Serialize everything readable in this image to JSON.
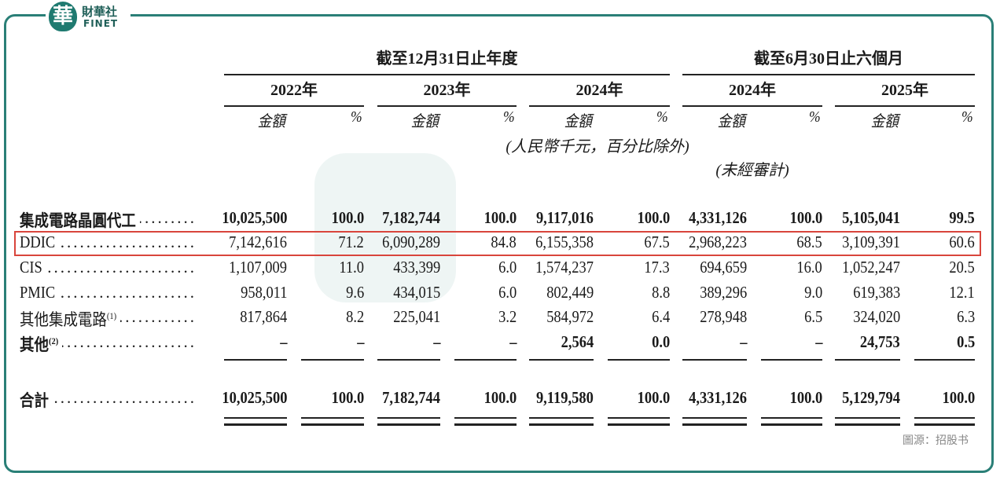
{
  "logo": {
    "mark": "華",
    "name": "財華社",
    "sub": "FINET"
  },
  "table": {
    "groups": [
      "截至12月31日止年度",
      "截至6月30日止六個月"
    ],
    "years": [
      "2022年",
      "2023年",
      "2024年",
      "2024年",
      "2025年"
    ],
    "subheaders": [
      "金額",
      "%"
    ],
    "unit_note": "(人民幣千元，百分比除外)",
    "audit_note": "(未經審計)",
    "rows": [
      {
        "label": "集成電路晶圓代工",
        "cells": [
          "10,025,500",
          "100.0",
          "7,182,744",
          "100.0",
          "9,117,016",
          "100.0",
          "4,331,126",
          "100.0",
          "5,105,041",
          "99.5"
        ]
      },
      {
        "label": "DDIC",
        "cells": [
          "7,142,616",
          "71.2",
          "6,090,289",
          "84.8",
          "6,155,358",
          "67.5",
          "2,968,223",
          "68.5",
          "3,109,391",
          "60.6"
        ]
      },
      {
        "label": "CIS",
        "cells": [
          "1,107,009",
          "11.0",
          "433,399",
          "6.0",
          "1,574,237",
          "17.3",
          "694,659",
          "16.0",
          "1,052,247",
          "20.5"
        ]
      },
      {
        "label": "PMIC",
        "cells": [
          "958,011",
          "9.6",
          "434,015",
          "6.0",
          "802,449",
          "8.8",
          "389,296",
          "9.0",
          "619,383",
          "12.1"
        ]
      },
      {
        "label": "其他集成電路",
        "note": "(1)",
        "cells": [
          "817,864",
          "8.2",
          "225,041",
          "3.2",
          "584,972",
          "6.4",
          "278,948",
          "6.5",
          "324,020",
          "6.3"
        ]
      },
      {
        "label": "其他",
        "note": "(2)",
        "cells": [
          "–",
          "–",
          "–",
          "–",
          "2,564",
          "0.0",
          "–",
          "–",
          "24,753",
          "0.5"
        ]
      }
    ],
    "total": {
      "label": "合計",
      "cells": [
        "10,025,500",
        "100.0",
        "7,182,744",
        "100.0",
        "9,119,580",
        "100.0",
        "4,331,126",
        "100.0",
        "5,129,794",
        "100.0"
      ]
    }
  },
  "source": "圖源：招股书"
}
